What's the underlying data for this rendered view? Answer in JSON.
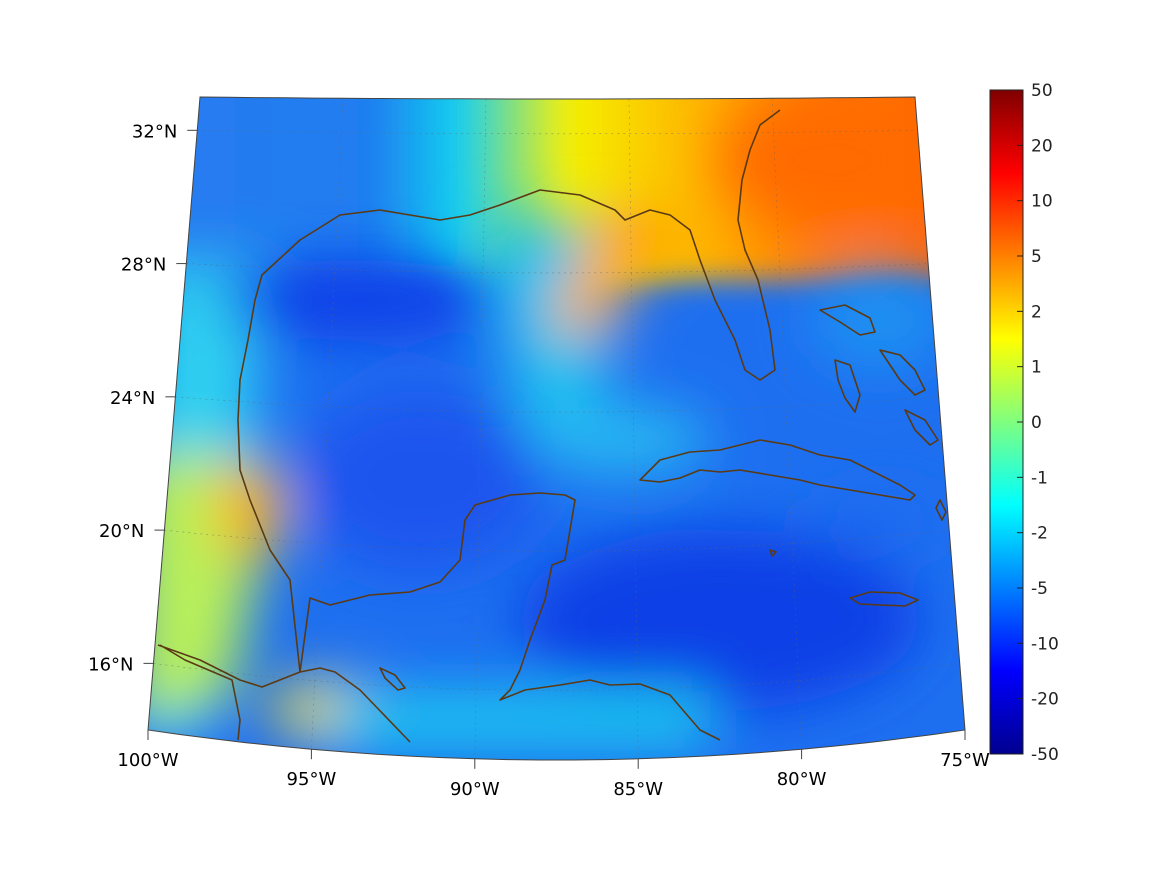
{
  "map": {
    "projection": "conic",
    "lon_range": [
      -100,
      -75
    ],
    "lat_range": [
      14,
      33
    ],
    "lon_ticks": [
      {
        "lon": -100,
        "label": "100°W"
      },
      {
        "lon": -95,
        "label": "95°W"
      },
      {
        "lon": -90,
        "label": "90°W"
      },
      {
        "lon": -85,
        "label": "85°W"
      },
      {
        "lon": -80,
        "label": "80°W"
      },
      {
        "lon": -75,
        "label": "75°W"
      }
    ],
    "lat_ticks": [
      {
        "lat": 32,
        "label": "32°N"
      },
      {
        "lat": 28,
        "label": "28°N"
      },
      {
        "lat": 24,
        "label": "24°N"
      },
      {
        "lat": 20,
        "label": "20°N"
      },
      {
        "lat": 16,
        "label": "16°N"
      }
    ],
    "coastline_color": "#5a3a14",
    "grid": true
  },
  "colorbar": {
    "colormap": "jet",
    "ticks": [
      "50",
      "20",
      "10",
      "5",
      "2",
      "1",
      "0",
      "-1",
      "-2",
      "-5",
      "-10",
      "-20",
      "-50"
    ],
    "min": -50,
    "max": 50
  }
}
